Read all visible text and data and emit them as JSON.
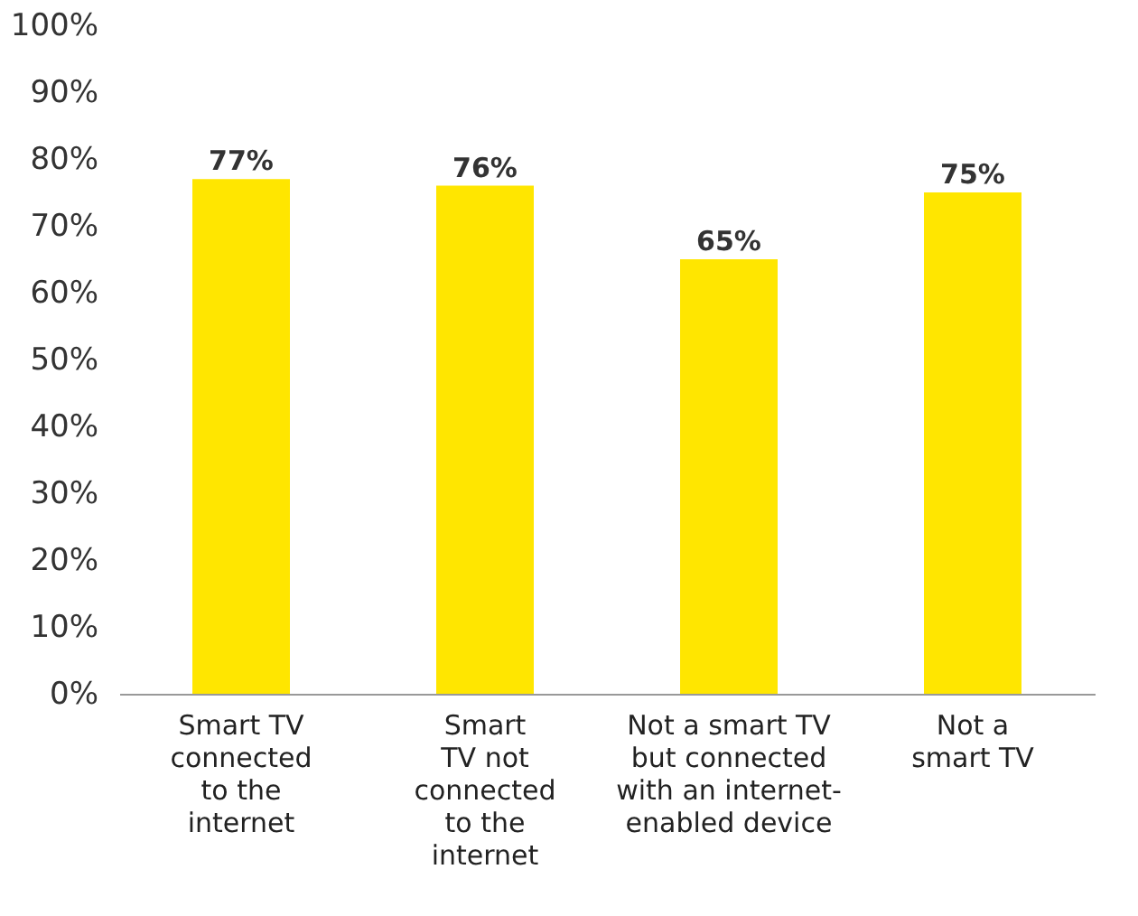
{
  "chart_data": {
    "type": "bar",
    "categories": [
      "Smart TV\nconnected\nto the\ninternet",
      "Smart\nTV not\nconnected\nto the\ninternet",
      "Not a smart TV\nbut connected\nwith an internet-\nenabled device",
      "Not a\nsmart TV"
    ],
    "values": [
      77,
      76,
      65,
      75
    ],
    "color": "#ffe600",
    "value_labels": [
      "77%",
      "76%",
      "65%",
      "75%"
    ],
    "ylim": [
      0,
      100
    ],
    "yticks": [
      {
        "value": 0,
        "label": "0%"
      },
      {
        "value": 10,
        "label": "10%"
      },
      {
        "value": 20,
        "label": "20%"
      },
      {
        "value": 30,
        "label": "30%"
      },
      {
        "value": 40,
        "label": "40%"
      },
      {
        "value": 50,
        "label": "50%"
      },
      {
        "value": 60,
        "label": "60%"
      },
      {
        "value": 70,
        "label": "70%"
      },
      {
        "value": 80,
        "label": "80%"
      },
      {
        "value": 90,
        "label": "90%"
      },
      {
        "value": 100,
        "label": "100%"
      }
    ],
    "grid": false
  }
}
